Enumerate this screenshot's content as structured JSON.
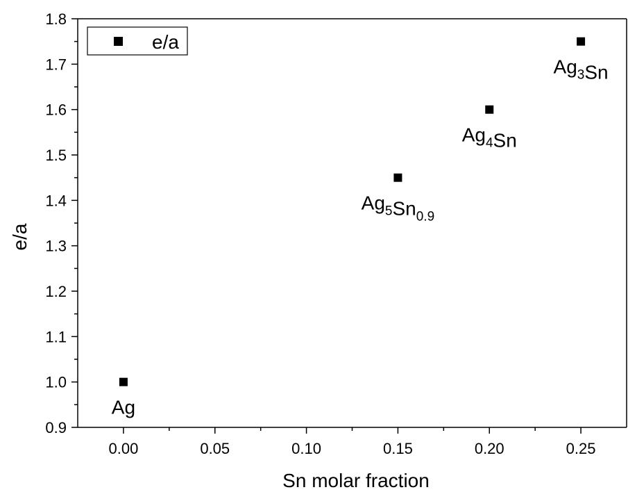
{
  "chart_data": {
    "type": "scatter",
    "xlabel": "Sn molar fraction",
    "ylabel": "e/a",
    "xlim": [
      -0.025,
      0.275
    ],
    "ylim": [
      0.9,
      1.8
    ],
    "x_ticks": [
      0.0,
      0.05,
      0.1,
      0.15,
      0.2,
      0.25
    ],
    "x_tick_labels": [
      "0.00",
      "0.05",
      "0.10",
      "0.15",
      "0.20",
      "0.25"
    ],
    "y_ticks": [
      0.9,
      1.0,
      1.1,
      1.2,
      1.3,
      1.4,
      1.5,
      1.6,
      1.7,
      1.8
    ],
    "y_tick_labels": [
      "0.9",
      "1.0",
      "1.1",
      "1.2",
      "1.3",
      "1.4",
      "1.5",
      "1.6",
      "1.7",
      "1.8"
    ],
    "grid": false,
    "legend": {
      "position": "top-left",
      "entries": [
        "e/a"
      ]
    },
    "marker": "square",
    "marker_color": "#000000",
    "series": [
      {
        "name": "e/a",
        "x": [
          0.0,
          0.15,
          0.2,
          0.25
        ],
        "y": [
          1.0,
          1.45,
          1.6,
          1.75
        ]
      }
    ],
    "annotations": [
      {
        "base": "Ag",
        "parts": [
          {
            "t": "Ag",
            "sub": false
          }
        ]
      },
      {
        "base": "Ag5Sn0.9",
        "parts": [
          {
            "t": "Ag",
            "sub": false
          },
          {
            "t": "5",
            "sub": true
          },
          {
            "t": "Sn",
            "sub": false
          },
          {
            "t": "0.9",
            "sub": true
          }
        ]
      },
      {
        "base": "Ag4Sn",
        "parts": [
          {
            "t": "Ag",
            "sub": false
          },
          {
            "t": "4",
            "sub": true
          },
          {
            "t": "Sn",
            "sub": false
          }
        ]
      },
      {
        "base": "Ag3Sn",
        "parts": [
          {
            "t": "Ag",
            "sub": false
          },
          {
            "t": "3",
            "sub": true
          },
          {
            "t": "Sn",
            "sub": false
          }
        ]
      }
    ]
  }
}
